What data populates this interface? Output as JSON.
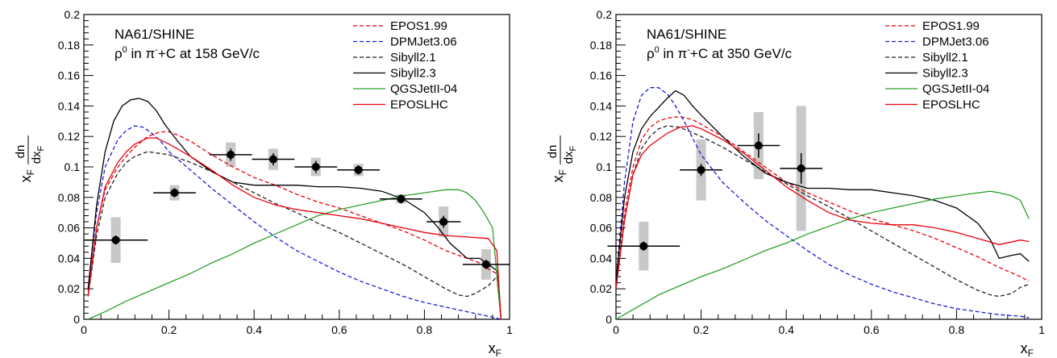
{
  "chart_data": [
    {
      "type": "line",
      "experiment": "NA61/SHINE",
      "reaction_prefix": "ρ",
      "reaction_prefix_sup": "0",
      "reaction_mid": " in π",
      "reaction_mid_sup": "-",
      "reaction_suffix": "+C at 158 GeV/c",
      "xlabel": "x",
      "xlabel_sub": "F",
      "ylabel_x": "x",
      "ylabel_x_sub": "F",
      "ylabel_num": "dn",
      "ylabel_den": "dx",
      "ylabel_den_sub": "F",
      "xlim": [
        0,
        1
      ],
      "ylim": [
        0,
        0.2
      ],
      "x_ticks": [
        0,
        0.2,
        0.4,
        0.6,
        0.8,
        1
      ],
      "x_tick_labels": [
        "0",
        "0.2",
        "0.4",
        "0.6",
        "0.8",
        "1"
      ],
      "y_ticks": [
        0,
        0.02,
        0.04,
        0.06,
        0.08,
        0.1,
        0.12,
        0.14,
        0.16,
        0.18,
        0.2
      ],
      "y_tick_labels": [
        "0",
        "0.02",
        "0.04",
        "0.06",
        "0.08",
        "0.1",
        "0.12",
        "0.14",
        "0.16",
        "0.18",
        "0.2"
      ],
      "legend_position": "top-right",
      "series": [
        {
          "name": "EPOS1.99",
          "color": "#e8000b",
          "dash": "dashed",
          "x": [
            0.01,
            0.03,
            0.05,
            0.08,
            0.1,
            0.12,
            0.15,
            0.18,
            0.2,
            0.22,
            0.25,
            0.3,
            0.35,
            0.4,
            0.45,
            0.5,
            0.55,
            0.6,
            0.65,
            0.7,
            0.75,
            0.8,
            0.85,
            0.9,
            0.93,
            0.95,
            0.97,
            0.98
          ],
          "y": [
            0.018,
            0.06,
            0.085,
            0.1,
            0.107,
            0.113,
            0.12,
            0.123,
            0.123,
            0.121,
            0.117,
            0.108,
            0.1,
            0.093,
            0.088,
            0.082,
            0.077,
            0.073,
            0.068,
            0.063,
            0.058,
            0.052,
            0.045,
            0.04,
            0.037,
            0.033,
            0.03,
            0.0
          ]
        },
        {
          "name": "DPMJet3.06",
          "color": "#1a1adb",
          "dash": "dashed",
          "x": [
            0.01,
            0.03,
            0.05,
            0.08,
            0.1,
            0.12,
            0.14,
            0.16,
            0.18,
            0.2,
            0.25,
            0.3,
            0.35,
            0.4,
            0.45,
            0.5,
            0.55,
            0.6,
            0.65,
            0.7,
            0.75,
            0.8,
            0.85,
            0.9,
            0.95,
            0.98
          ],
          "y": [
            0.02,
            0.07,
            0.1,
            0.118,
            0.124,
            0.127,
            0.126,
            0.122,
            0.117,
            0.11,
            0.098,
            0.086,
            0.075,
            0.064,
            0.054,
            0.045,
            0.038,
            0.031,
            0.025,
            0.02,
            0.015,
            0.011,
            0.008,
            0.005,
            0.002,
            0.0
          ]
        },
        {
          "name": "Sibyll2.1",
          "color": "#222222",
          "dash": "dashed",
          "x": [
            0.01,
            0.03,
            0.05,
            0.08,
            0.1,
            0.12,
            0.15,
            0.2,
            0.25,
            0.3,
            0.35,
            0.4,
            0.45,
            0.5,
            0.55,
            0.6,
            0.65,
            0.7,
            0.75,
            0.8,
            0.85,
            0.88,
            0.9,
            0.92,
            0.95,
            0.97,
            0.98
          ],
          "y": [
            0.015,
            0.055,
            0.08,
            0.096,
            0.103,
            0.107,
            0.11,
            0.108,
            0.103,
            0.097,
            0.09,
            0.083,
            0.076,
            0.07,
            0.063,
            0.057,
            0.05,
            0.043,
            0.036,
            0.028,
            0.02,
            0.016,
            0.015,
            0.017,
            0.022,
            0.028,
            0.0
          ]
        },
        {
          "name": "Sibyll2.3",
          "color": "#000000",
          "dash": "solid",
          "x": [
            0.01,
            0.03,
            0.05,
            0.07,
            0.09,
            0.11,
            0.13,
            0.15,
            0.17,
            0.19,
            0.22,
            0.25,
            0.3,
            0.35,
            0.4,
            0.45,
            0.5,
            0.55,
            0.6,
            0.65,
            0.7,
            0.75,
            0.8,
            0.83,
            0.86,
            0.88,
            0.9,
            0.93,
            0.95,
            0.97,
            0.98
          ],
          "y": [
            0.02,
            0.075,
            0.11,
            0.13,
            0.14,
            0.144,
            0.145,
            0.143,
            0.137,
            0.128,
            0.117,
            0.107,
            0.097,
            0.09,
            0.088,
            0.088,
            0.088,
            0.087,
            0.087,
            0.086,
            0.084,
            0.079,
            0.07,
            0.061,
            0.05,
            0.045,
            0.04,
            0.04,
            0.036,
            0.032,
            0.0
          ]
        },
        {
          "name": "QGSJetII-04",
          "color": "#2aa02a",
          "dash": "solid",
          "x": [
            0.01,
            0.05,
            0.1,
            0.15,
            0.2,
            0.25,
            0.3,
            0.35,
            0.4,
            0.45,
            0.5,
            0.55,
            0.6,
            0.65,
            0.7,
            0.75,
            0.8,
            0.85,
            0.88,
            0.9,
            0.92,
            0.94,
            0.96,
            0.98
          ],
          "y": [
            0.0,
            0.005,
            0.012,
            0.018,
            0.024,
            0.03,
            0.037,
            0.043,
            0.05,
            0.056,
            0.062,
            0.068,
            0.072,
            0.075,
            0.078,
            0.081,
            0.083,
            0.085,
            0.085,
            0.083,
            0.078,
            0.07,
            0.06,
            0.0
          ]
        },
        {
          "name": "EPOSLHC",
          "color": "#e8000b",
          "dash": "solid",
          "x": [
            0.01,
            0.03,
            0.05,
            0.08,
            0.1,
            0.12,
            0.15,
            0.17,
            0.2,
            0.25,
            0.3,
            0.35,
            0.4,
            0.45,
            0.5,
            0.55,
            0.6,
            0.65,
            0.7,
            0.75,
            0.8,
            0.85,
            0.9,
            0.95,
            0.97,
            0.98
          ],
          "y": [
            0.015,
            0.06,
            0.087,
            0.103,
            0.11,
            0.115,
            0.119,
            0.119,
            0.115,
            0.107,
            0.098,
            0.088,
            0.08,
            0.075,
            0.072,
            0.07,
            0.068,
            0.066,
            0.063,
            0.06,
            0.057,
            0.055,
            0.054,
            0.053,
            0.045,
            0.0
          ]
        }
      ],
      "measurements": {
        "x": [
          0.075,
          0.213,
          0.345,
          0.445,
          0.545,
          0.645,
          0.745,
          0.845,
          0.945
        ],
        "y": [
          0.052,
          0.083,
          0.108,
          0.105,
          0.1,
          0.098,
          0.079,
          0.064,
          0.036
        ],
        "x_err": [
          0.075,
          0.05,
          0.05,
          0.05,
          0.05,
          0.05,
          0.05,
          0.04,
          0.055
        ],
        "y_err": [
          0.003,
          0.003,
          0.004,
          0.004,
          0.004,
          0.003,
          0.003,
          0.004,
          0.003
        ],
        "sys_err": [
          0.015,
          0.005,
          0.008,
          0.007,
          0.006,
          0.004,
          0.003,
          0.01,
          0.01
        ]
      }
    },
    {
      "type": "line",
      "experiment": "NA61/SHINE",
      "reaction_prefix": "ρ",
      "reaction_prefix_sup": "0",
      "reaction_mid": " in π",
      "reaction_mid_sup": "-",
      "reaction_suffix": "+C at 350 GeV/c",
      "xlabel": "x",
      "xlabel_sub": "F",
      "ylabel_x": "x",
      "ylabel_x_sub": "F",
      "ylabel_num": "dn",
      "ylabel_den": "dx",
      "ylabel_den_sub": "F",
      "xlim": [
        0,
        1
      ],
      "ylim": [
        0,
        0.2
      ],
      "x_ticks": [
        0,
        0.2,
        0.4,
        0.6,
        0.8,
        1
      ],
      "x_tick_labels": [
        "0",
        "0.2",
        "0.4",
        "0.6",
        "0.8",
        "1"
      ],
      "y_ticks": [
        0,
        0.02,
        0.04,
        0.06,
        0.08,
        0.1,
        0.12,
        0.14,
        0.16,
        0.18,
        0.2
      ],
      "y_tick_labels": [
        "0",
        "0.02",
        "0.04",
        "0.06",
        "0.08",
        "0.1",
        "0.12",
        "0.14",
        "0.16",
        "0.18",
        "0.2"
      ],
      "legend_position": "top-right",
      "series": [
        {
          "name": "EPOS1.99",
          "color": "#e8000b",
          "dash": "dashed",
          "x": [
            0.0,
            0.02,
            0.04,
            0.06,
            0.08,
            0.1,
            0.12,
            0.15,
            0.18,
            0.2,
            0.25,
            0.3,
            0.35,
            0.4,
            0.45,
            0.5,
            0.55,
            0.6,
            0.65,
            0.7,
            0.75,
            0.8,
            0.85,
            0.9,
            0.95,
            0.97
          ],
          "y": [
            0.02,
            0.07,
            0.1,
            0.118,
            0.126,
            0.13,
            0.132,
            0.133,
            0.131,
            0.128,
            0.12,
            0.11,
            0.1,
            0.09,
            0.083,
            0.077,
            0.071,
            0.066,
            0.062,
            0.058,
            0.053,
            0.047,
            0.041,
            0.034,
            0.028,
            0.025
          ]
        },
        {
          "name": "DPMJet3.06",
          "color": "#1a1adb",
          "dash": "dashed",
          "x": [
            0.0,
            0.02,
            0.04,
            0.06,
            0.08,
            0.1,
            0.12,
            0.14,
            0.16,
            0.18,
            0.2,
            0.25,
            0.3,
            0.35,
            0.4,
            0.45,
            0.5,
            0.55,
            0.6,
            0.65,
            0.7,
            0.75,
            0.8,
            0.85,
            0.9,
            0.95,
            0.97
          ],
          "y": [
            0.025,
            0.09,
            0.13,
            0.147,
            0.152,
            0.152,
            0.148,
            0.14,
            0.13,
            0.119,
            0.108,
            0.09,
            0.077,
            0.065,
            0.055,
            0.045,
            0.036,
            0.029,
            0.023,
            0.018,
            0.014,
            0.01,
            0.007,
            0.005,
            0.003,
            0.002,
            0.001
          ]
        },
        {
          "name": "Sibyll2.1",
          "color": "#222222",
          "dash": "dashed",
          "x": [
            0.0,
            0.02,
            0.04,
            0.06,
            0.08,
            0.1,
            0.12,
            0.15,
            0.2,
            0.25,
            0.3,
            0.35,
            0.4,
            0.45,
            0.5,
            0.55,
            0.6,
            0.65,
            0.7,
            0.75,
            0.8,
            0.85,
            0.88,
            0.9,
            0.93,
            0.95,
            0.97
          ],
          "y": [
            0.02,
            0.065,
            0.095,
            0.112,
            0.12,
            0.125,
            0.127,
            0.126,
            0.12,
            0.113,
            0.105,
            0.097,
            0.089,
            0.081,
            0.074,
            0.066,
            0.058,
            0.05,
            0.042,
            0.034,
            0.026,
            0.019,
            0.016,
            0.015,
            0.017,
            0.021,
            0.023
          ]
        },
        {
          "name": "Sibyll2.3",
          "color": "#000000",
          "dash": "solid",
          "x": [
            0.0,
            0.02,
            0.04,
            0.06,
            0.08,
            0.1,
            0.12,
            0.14,
            0.16,
            0.18,
            0.2,
            0.25,
            0.3,
            0.35,
            0.4,
            0.45,
            0.5,
            0.55,
            0.6,
            0.65,
            0.7,
            0.75,
            0.8,
            0.85,
            0.88,
            0.9,
            0.93,
            0.95,
            0.97
          ],
          "y": [
            0.025,
            0.08,
            0.11,
            0.125,
            0.133,
            0.139,
            0.145,
            0.15,
            0.147,
            0.14,
            0.134,
            0.12,
            0.107,
            0.096,
            0.09,
            0.086,
            0.086,
            0.085,
            0.085,
            0.083,
            0.081,
            0.078,
            0.073,
            0.063,
            0.052,
            0.04,
            0.042,
            0.043,
            0.038
          ]
        },
        {
          "name": "QGSJetII-04",
          "color": "#2aa02a",
          "dash": "solid",
          "x": [
            0.0,
            0.05,
            0.1,
            0.15,
            0.2,
            0.25,
            0.3,
            0.35,
            0.4,
            0.45,
            0.5,
            0.55,
            0.6,
            0.65,
            0.7,
            0.75,
            0.8,
            0.85,
            0.88,
            0.9,
            0.93,
            0.95,
            0.97
          ],
          "y": [
            0.0,
            0.008,
            0.016,
            0.022,
            0.028,
            0.033,
            0.039,
            0.045,
            0.05,
            0.056,
            0.061,
            0.066,
            0.07,
            0.073,
            0.076,
            0.079,
            0.081,
            0.083,
            0.084,
            0.083,
            0.081,
            0.078,
            0.066
          ]
        },
        {
          "name": "EPOSLHC",
          "color": "#e8000b",
          "dash": "solid",
          "x": [
            0.0,
            0.02,
            0.04,
            0.06,
            0.08,
            0.1,
            0.12,
            0.15,
            0.18,
            0.2,
            0.25,
            0.3,
            0.35,
            0.4,
            0.45,
            0.5,
            0.55,
            0.6,
            0.65,
            0.7,
            0.75,
            0.8,
            0.85,
            0.9,
            0.95,
            0.97
          ],
          "y": [
            0.02,
            0.065,
            0.095,
            0.108,
            0.114,
            0.118,
            0.122,
            0.126,
            0.127,
            0.125,
            0.118,
            0.109,
            0.098,
            0.087,
            0.078,
            0.07,
            0.065,
            0.063,
            0.062,
            0.062,
            0.06,
            0.057,
            0.053,
            0.049,
            0.052,
            0.051
          ]
        }
      ],
      "measurements": {
        "x": [
          0.065,
          0.2,
          0.335,
          0.435
        ],
        "y": [
          0.048,
          0.098,
          0.114,
          0.099
        ],
        "x_err": [
          0.085,
          0.05,
          0.05,
          0.05
        ],
        "y_err": [
          0.003,
          0.004,
          0.008,
          0.01
        ],
        "sys_err": [
          0.016,
          0.02,
          0.022,
          0.041
        ]
      }
    }
  ]
}
